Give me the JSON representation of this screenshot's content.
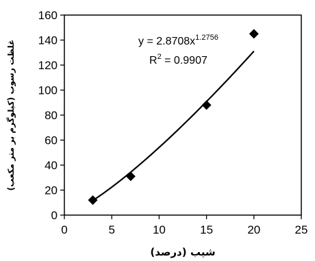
{
  "chart_data": {
    "type": "scatter",
    "xlabel": "شیب (درصد)",
    "ylabel": "غلظت رسوب (کیلوگرم بر متر مکعب)",
    "xlim": [
      0,
      25
    ],
    "ylim": [
      0,
      160
    ],
    "xticks": [
      0,
      5,
      10,
      15,
      20,
      25
    ],
    "yticks": [
      0,
      20,
      40,
      60,
      80,
      100,
      120,
      140,
      160
    ],
    "grid": false,
    "legend": "none",
    "series": [
      {
        "marker": "diamond",
        "color": "#000000",
        "x": [
          3,
          7,
          15,
          20
        ],
        "y": [
          12,
          31,
          88,
          145
        ]
      }
    ],
    "trendline": {
      "type": "power",
      "coefficient": 2.8708,
      "exponent": 1.2756,
      "x_range": [
        3,
        20
      ],
      "color": "#000000"
    },
    "annotations": {
      "equation_prefix": "y = 2.8708x",
      "equation_exponent": "1.2756",
      "r2_prefix": "R",
      "r2_exponent": "2",
      "r2_value": " = 0.9907"
    }
  }
}
